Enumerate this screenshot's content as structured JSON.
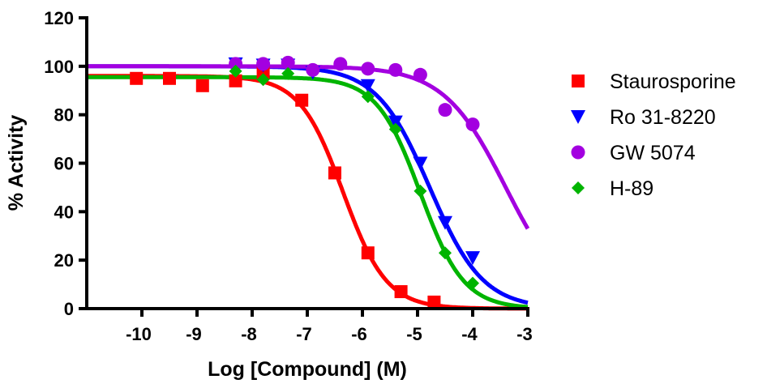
{
  "chart_data": {
    "type": "scatter",
    "title": "",
    "xlabel": "Log [Compound] (M)",
    "ylabel": "% Activity",
    "xlim": [
      -11,
      -3
    ],
    "ylim": [
      0,
      120
    ],
    "xticks": [
      -10,
      -9,
      -8,
      -7,
      -6,
      -5,
      -4,
      -3
    ],
    "yticks": [
      0,
      20,
      40,
      60,
      80,
      100,
      120
    ],
    "grid": false,
    "legend_position": "right",
    "series": [
      {
        "name": "Staurosporine",
        "color": "#ff0000",
        "marker": "square",
        "x": [
          -10.1,
          -9.5,
          -8.9,
          -8.3,
          -7.8,
          -7.1,
          -6.5,
          -5.9,
          -5.3,
          -4.7
        ],
        "y": [
          95,
          95,
          92,
          94,
          97.5,
          86,
          56,
          23,
          7,
          2.7
        ],
        "fit": {
          "top": 96,
          "bottom": 0,
          "logIC50": -6.35,
          "hill": 1.1
        }
      },
      {
        "name": "Ro 31-8220",
        "color": "#0000ff",
        "marker": "triangle-down",
        "x": [
          -8.3,
          -7.8,
          -7.35,
          -6.9,
          -5.9,
          -5.4,
          -4.95,
          -4.5,
          -4.0
        ],
        "y": [
          101,
          100.5,
          100.5,
          97.5,
          92,
          77,
          60,
          35.5,
          21
        ],
        "fit": {
          "top": 100,
          "bottom": 0,
          "logIC50": -4.78,
          "hill": 0.9
        }
      },
      {
        "name": "GW 5074",
        "color": "#a300e0",
        "marker": "circle",
        "x": [
          -8.3,
          -7.8,
          -7.35,
          -6.9,
          -6.4,
          -5.9,
          -5.4,
          -4.95,
          -4.5,
          -4.0
        ],
        "y": [
          101,
          101,
          101.5,
          98.5,
          101,
          99,
          98.5,
          96.5,
          82,
          76
        ],
        "fit": {
          "top": 100,
          "bottom": 0,
          "logIC50": -3.4,
          "hill": 0.77
        }
      },
      {
        "name": "H-89",
        "color": "#00b400",
        "marker": "diamond",
        "x": [
          -8.3,
          -7.8,
          -7.35,
          -5.9,
          -5.4,
          -4.95,
          -4.5,
          -4.0
        ],
        "y": [
          98,
          94.5,
          97,
          87.5,
          74,
          48.5,
          23,
          10.5
        ],
        "fit": {
          "top": 95.5,
          "bottom": 0,
          "logIC50": -4.95,
          "hill": 1.1
        }
      }
    ]
  }
}
